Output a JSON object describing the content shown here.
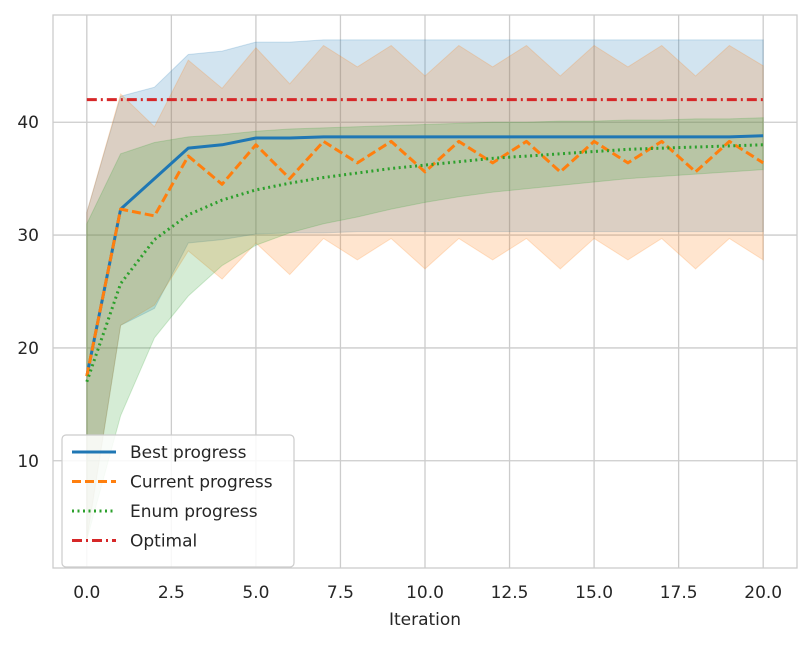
{
  "chart_data": {
    "type": "line",
    "xlabel": "Iteration",
    "ylabel": "",
    "title": "",
    "xlim": [
      -1,
      21
    ],
    "ylim": [
      0.5,
      49.5
    ],
    "xticks": [
      0.0,
      2.5,
      5.0,
      7.5,
      10.0,
      12.5,
      15.0,
      17.5,
      20.0
    ],
    "xtick_labels": [
      "0.0",
      "2.5",
      "5.0",
      "7.5",
      "10.0",
      "12.5",
      "15.0",
      "17.5",
      "20.0"
    ],
    "yticks": [
      10,
      20,
      30,
      40
    ],
    "ytick_labels": [
      "10",
      "20",
      "30",
      "40"
    ],
    "grid": true,
    "legend_position": "lower-left",
    "x": [
      0,
      1,
      2,
      3,
      4,
      5,
      6,
      7,
      8,
      9,
      10,
      11,
      12,
      13,
      14,
      15,
      16,
      17,
      18,
      19,
      20
    ],
    "series": [
      {
        "name": "Best progress",
        "color": "#1f77b4",
        "style": "solid",
        "values": [
          17.5,
          32.3,
          35.0,
          37.7,
          38.0,
          38.6,
          38.6,
          38.7,
          38.7,
          38.7,
          38.7,
          38.7,
          38.7,
          38.7,
          38.7,
          38.7,
          38.7,
          38.7,
          38.7,
          38.7,
          38.8
        ],
        "band_lower": [
          3.0,
          22.0,
          23.5,
          29.3,
          29.6,
          30.1,
          30.2,
          30.2,
          30.3,
          30.3,
          30.3,
          30.3,
          30.3,
          30.3,
          30.3,
          30.3,
          30.3,
          30.3,
          30.3,
          30.3,
          30.3
        ],
        "band_upper": [
          32.0,
          42.3,
          43.1,
          46.0,
          46.3,
          47.1,
          47.1,
          47.3,
          47.3,
          47.3,
          47.3,
          47.3,
          47.3,
          47.3,
          47.3,
          47.3,
          47.3,
          47.3,
          47.3,
          47.3,
          47.3
        ]
      },
      {
        "name": "Current progress",
        "color": "#ff7f0e",
        "style": "dashed",
        "values": [
          17.5,
          32.3,
          31.7,
          37.0,
          34.5,
          38.0,
          35.0,
          38.3,
          36.4,
          38.3,
          35.6,
          38.3,
          36.4,
          38.3,
          35.6,
          38.3,
          36.4,
          38.3,
          35.6,
          38.3,
          36.4
        ],
        "band_lower": [
          3.0,
          22.0,
          23.8,
          28.6,
          26.1,
          29.3,
          26.5,
          29.7,
          27.8,
          29.7,
          27.0,
          29.7,
          27.8,
          29.7,
          27.0,
          29.7,
          27.8,
          29.7,
          27.0,
          29.7,
          27.8
        ],
        "band_upper": [
          32.0,
          42.5,
          39.6,
          45.5,
          43.0,
          46.6,
          43.4,
          46.8,
          44.9,
          46.8,
          44.1,
          46.8,
          44.9,
          46.8,
          44.1,
          46.8,
          44.9,
          46.8,
          44.1,
          46.8,
          45.0
        ]
      },
      {
        "name": "Enum progress",
        "color": "#2ca02c",
        "style": "dotted",
        "values": [
          17.0,
          25.7,
          29.6,
          31.8,
          33.1,
          34.0,
          34.6,
          35.1,
          35.5,
          35.9,
          36.2,
          36.5,
          36.8,
          37.0,
          37.2,
          37.4,
          37.6,
          37.7,
          37.8,
          37.9,
          38.0
        ],
        "band_lower": [
          3.0,
          14.0,
          20.9,
          24.6,
          27.3,
          29.1,
          30.2,
          31.0,
          31.6,
          32.3,
          32.9,
          33.4,
          33.8,
          34.1,
          34.4,
          34.7,
          35.0,
          35.2,
          35.4,
          35.6,
          35.8
        ],
        "band_upper": [
          31.0,
          37.2,
          38.2,
          38.7,
          38.9,
          39.2,
          39.4,
          39.5,
          39.6,
          39.7,
          39.8,
          39.9,
          40.0,
          40.0,
          40.1,
          40.1,
          40.2,
          40.2,
          40.3,
          40.3,
          40.4
        ]
      },
      {
        "name": "Optimal",
        "color": "#d62728",
        "style": "dashdot",
        "values": [
          42,
          42,
          42,
          42,
          42,
          42,
          42,
          42,
          42,
          42,
          42,
          42,
          42,
          42,
          42,
          42,
          42,
          42,
          42,
          42,
          42
        ]
      }
    ]
  }
}
